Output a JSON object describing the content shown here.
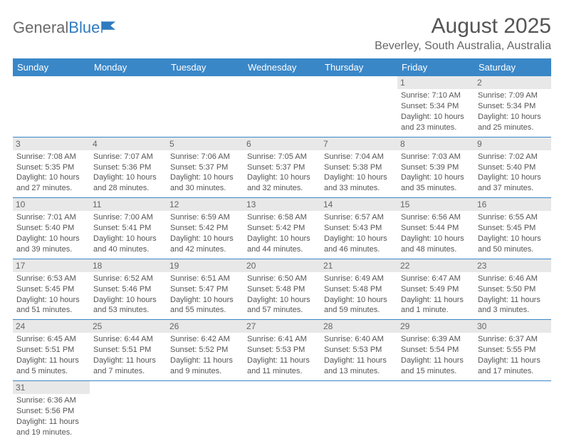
{
  "logo": {
    "text1": "General",
    "text2": "Blue"
  },
  "title": "August 2025",
  "location": "Beverley, South Australia, Australia",
  "header_bg": "#3a87c8",
  "daynum_bg": "#e8e8e8",
  "daynames": [
    "Sunday",
    "Monday",
    "Tuesday",
    "Wednesday",
    "Thursday",
    "Friday",
    "Saturday"
  ],
  "weeks": [
    [
      null,
      null,
      null,
      null,
      null,
      {
        "n": "1",
        "sr": "Sunrise: 7:10 AM",
        "ss": "Sunset: 5:34 PM",
        "dl": "Daylight: 10 hours and 23 minutes."
      },
      {
        "n": "2",
        "sr": "Sunrise: 7:09 AM",
        "ss": "Sunset: 5:34 PM",
        "dl": "Daylight: 10 hours and 25 minutes."
      }
    ],
    [
      {
        "n": "3",
        "sr": "Sunrise: 7:08 AM",
        "ss": "Sunset: 5:35 PM",
        "dl": "Daylight: 10 hours and 27 minutes."
      },
      {
        "n": "4",
        "sr": "Sunrise: 7:07 AM",
        "ss": "Sunset: 5:36 PM",
        "dl": "Daylight: 10 hours and 28 minutes."
      },
      {
        "n": "5",
        "sr": "Sunrise: 7:06 AM",
        "ss": "Sunset: 5:37 PM",
        "dl": "Daylight: 10 hours and 30 minutes."
      },
      {
        "n": "6",
        "sr": "Sunrise: 7:05 AM",
        "ss": "Sunset: 5:37 PM",
        "dl": "Daylight: 10 hours and 32 minutes."
      },
      {
        "n": "7",
        "sr": "Sunrise: 7:04 AM",
        "ss": "Sunset: 5:38 PM",
        "dl": "Daylight: 10 hours and 33 minutes."
      },
      {
        "n": "8",
        "sr": "Sunrise: 7:03 AM",
        "ss": "Sunset: 5:39 PM",
        "dl": "Daylight: 10 hours and 35 minutes."
      },
      {
        "n": "9",
        "sr": "Sunrise: 7:02 AM",
        "ss": "Sunset: 5:40 PM",
        "dl": "Daylight: 10 hours and 37 minutes."
      }
    ],
    [
      {
        "n": "10",
        "sr": "Sunrise: 7:01 AM",
        "ss": "Sunset: 5:40 PM",
        "dl": "Daylight: 10 hours and 39 minutes."
      },
      {
        "n": "11",
        "sr": "Sunrise: 7:00 AM",
        "ss": "Sunset: 5:41 PM",
        "dl": "Daylight: 10 hours and 40 minutes."
      },
      {
        "n": "12",
        "sr": "Sunrise: 6:59 AM",
        "ss": "Sunset: 5:42 PM",
        "dl": "Daylight: 10 hours and 42 minutes."
      },
      {
        "n": "13",
        "sr": "Sunrise: 6:58 AM",
        "ss": "Sunset: 5:42 PM",
        "dl": "Daylight: 10 hours and 44 minutes."
      },
      {
        "n": "14",
        "sr": "Sunrise: 6:57 AM",
        "ss": "Sunset: 5:43 PM",
        "dl": "Daylight: 10 hours and 46 minutes."
      },
      {
        "n": "15",
        "sr": "Sunrise: 6:56 AM",
        "ss": "Sunset: 5:44 PM",
        "dl": "Daylight: 10 hours and 48 minutes."
      },
      {
        "n": "16",
        "sr": "Sunrise: 6:55 AM",
        "ss": "Sunset: 5:45 PM",
        "dl": "Daylight: 10 hours and 50 minutes."
      }
    ],
    [
      {
        "n": "17",
        "sr": "Sunrise: 6:53 AM",
        "ss": "Sunset: 5:45 PM",
        "dl": "Daylight: 10 hours and 51 minutes."
      },
      {
        "n": "18",
        "sr": "Sunrise: 6:52 AM",
        "ss": "Sunset: 5:46 PM",
        "dl": "Daylight: 10 hours and 53 minutes."
      },
      {
        "n": "19",
        "sr": "Sunrise: 6:51 AM",
        "ss": "Sunset: 5:47 PM",
        "dl": "Daylight: 10 hours and 55 minutes."
      },
      {
        "n": "20",
        "sr": "Sunrise: 6:50 AM",
        "ss": "Sunset: 5:48 PM",
        "dl": "Daylight: 10 hours and 57 minutes."
      },
      {
        "n": "21",
        "sr": "Sunrise: 6:49 AM",
        "ss": "Sunset: 5:48 PM",
        "dl": "Daylight: 10 hours and 59 minutes."
      },
      {
        "n": "22",
        "sr": "Sunrise: 6:47 AM",
        "ss": "Sunset: 5:49 PM",
        "dl": "Daylight: 11 hours and 1 minute."
      },
      {
        "n": "23",
        "sr": "Sunrise: 6:46 AM",
        "ss": "Sunset: 5:50 PM",
        "dl": "Daylight: 11 hours and 3 minutes."
      }
    ],
    [
      {
        "n": "24",
        "sr": "Sunrise: 6:45 AM",
        "ss": "Sunset: 5:51 PM",
        "dl": "Daylight: 11 hours and 5 minutes."
      },
      {
        "n": "25",
        "sr": "Sunrise: 6:44 AM",
        "ss": "Sunset: 5:51 PM",
        "dl": "Daylight: 11 hours and 7 minutes."
      },
      {
        "n": "26",
        "sr": "Sunrise: 6:42 AM",
        "ss": "Sunset: 5:52 PM",
        "dl": "Daylight: 11 hours and 9 minutes."
      },
      {
        "n": "27",
        "sr": "Sunrise: 6:41 AM",
        "ss": "Sunset: 5:53 PM",
        "dl": "Daylight: 11 hours and 11 minutes."
      },
      {
        "n": "28",
        "sr": "Sunrise: 6:40 AM",
        "ss": "Sunset: 5:53 PM",
        "dl": "Daylight: 11 hours and 13 minutes."
      },
      {
        "n": "29",
        "sr": "Sunrise: 6:39 AM",
        "ss": "Sunset: 5:54 PM",
        "dl": "Daylight: 11 hours and 15 minutes."
      },
      {
        "n": "30",
        "sr": "Sunrise: 6:37 AM",
        "ss": "Sunset: 5:55 PM",
        "dl": "Daylight: 11 hours and 17 minutes."
      }
    ],
    [
      {
        "n": "31",
        "sr": "Sunrise: 6:36 AM",
        "ss": "Sunset: 5:56 PM",
        "dl": "Daylight: 11 hours and 19 minutes."
      },
      null,
      null,
      null,
      null,
      null,
      null
    ]
  ]
}
